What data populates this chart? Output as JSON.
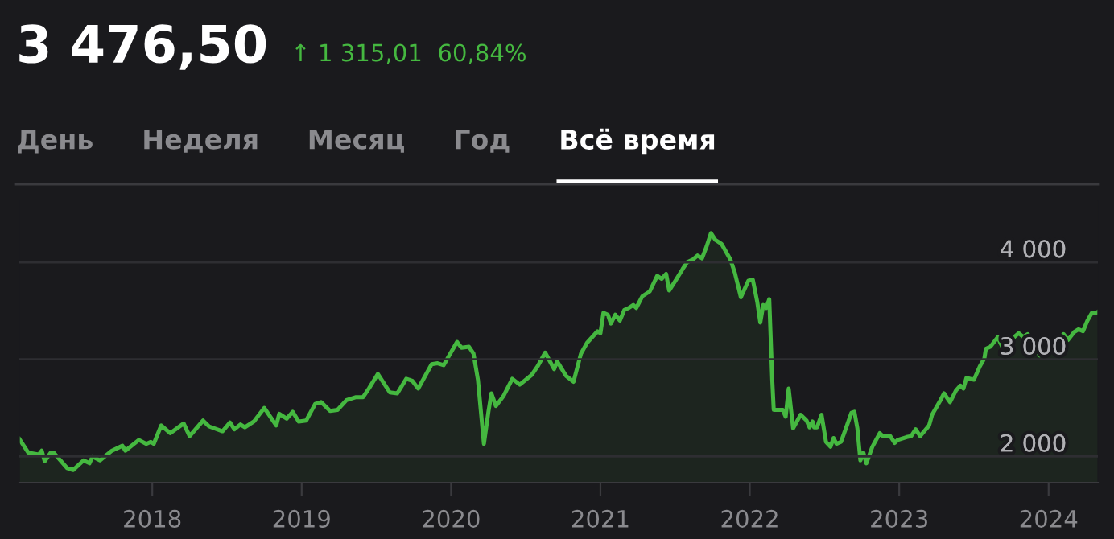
{
  "chart_data": {
    "type": "area",
    "title": "3 476,50",
    "subtitle": "↑ 1 315,01  60,84%",
    "annotations": [
      "День",
      "Неделя",
      "Месяц",
      "Год",
      "Всё время"
    ],
    "series": [
      {
        "color": "#45b840",
        "x": [
          2017.11,
          2017.17,
          2017.24,
          2017.26,
          2017.28,
          2017.32,
          2017.34,
          2017.43,
          2017.47,
          2017.54,
          2017.58,
          2017.6,
          2017.65,
          2017.73,
          2017.8,
          2017.82,
          2017.91,
          2017.96,
          2017.99,
          2018.01,
          2018.06,
          2018.12,
          2018.21,
          2018.25,
          2018.34,
          2018.38,
          2018.47,
          2018.52,
          2018.55,
          2018.59,
          2018.62,
          2018.68,
          2018.75,
          2018.83,
          2018.85,
          2018.9,
          2018.94,
          2018.98,
          2019.03,
          2019.09,
          2019.13,
          2019.19,
          2019.24,
          2019.3,
          2019.36,
          2019.41,
          2019.45,
          2019.51,
          2019.59,
          2019.64,
          2019.7,
          2019.74,
          2019.78,
          2019.87,
          2019.91,
          2019.95,
          2020.04,
          2020.07,
          2020.12,
          2020.15,
          2020.18,
          2020.22,
          2020.25,
          2020.27,
          2020.3,
          2020.35,
          2020.41,
          2020.46,
          2020.54,
          2020.58,
          2020.63,
          2020.69,
          2020.71,
          2020.77,
          2020.82,
          2020.87,
          2020.91,
          2020.98,
          2021.0,
          2021.02,
          2021.05,
          2021.07,
          2021.1,
          2021.13,
          2021.16,
          2021.19,
          2021.22,
          2021.24,
          2021.28,
          2021.33,
          2021.38,
          2021.41,
          2021.44,
          2021.46,
          2021.51,
          2021.55,
          2021.58,
          2021.62,
          2021.65,
          2021.68,
          2021.71,
          2021.74,
          2021.77,
          2021.81,
          2021.87,
          2021.9,
          2021.94,
          2021.99,
          2022.02,
          2022.05,
          2022.07,
          2022.09,
          2022.11,
          2022.13,
          2022.15,
          2022.16,
          2022.22,
          2022.24,
          2022.26,
          2022.29,
          2022.34,
          2022.38,
          2022.4,
          2022.42,
          2022.43,
          2022.45,
          2022.48,
          2022.51,
          2022.54,
          2022.56,
          2022.58,
          2022.61,
          2022.65,
          2022.68,
          2022.7,
          2022.72,
          2022.74,
          2022.76,
          2022.78,
          2022.82,
          2022.87,
          2022.89,
          2022.94,
          2022.97,
          2022.99,
          2023.05,
          2023.08,
          2023.11,
          2023.14,
          2023.2,
          2023.22,
          2023.28,
          2023.3,
          2023.34,
          2023.38,
          2023.41,
          2023.43,
          2023.45,
          2023.5,
          2023.54,
          2023.57,
          2023.58,
          2023.61,
          2023.66,
          2023.68,
          2023.71,
          2023.77,
          2023.8,
          2023.83,
          2023.86,
          2023.89,
          2023.91,
          2023.94,
          2023.97,
          2024.01,
          2024.07,
          2024.1,
          2024.13,
          2024.17,
          2024.2,
          2024.23,
          2024.26,
          2024.29,
          2024.32,
          2024.33
        ],
        "values": [
          2180,
          2040,
          2020,
          2060,
          1950,
          2040,
          2040,
          1880,
          1860,
          1960,
          1930,
          2000,
          1960,
          2060,
          2110,
          2060,
          2170,
          2130,
          2150,
          2130,
          2320,
          2240,
          2340,
          2210,
          2370,
          2310,
          2260,
          2350,
          2280,
          2330,
          2300,
          2360,
          2500,
          2320,
          2440,
          2390,
          2460,
          2360,
          2370,
          2540,
          2560,
          2470,
          2480,
          2580,
          2610,
          2610,
          2700,
          2850,
          2660,
          2650,
          2800,
          2780,
          2700,
          2950,
          2960,
          2940,
          3180,
          3120,
          3130,
          3060,
          2790,
          2130,
          2460,
          2650,
          2520,
          2620,
          2800,
          2740,
          2840,
          2930,
          3070,
          2900,
          2980,
          2830,
          2770,
          3060,
          3170,
          3290,
          3270,
          3480,
          3460,
          3370,
          3460,
          3400,
          3510,
          3530,
          3560,
          3530,
          3650,
          3700,
          3860,
          3830,
          3880,
          3710,
          3830,
          3930,
          4000,
          4030,
          4070,
          4040,
          4160,
          4300,
          4230,
          4190,
          4030,
          3890,
          3640,
          3810,
          3820,
          3590,
          3380,
          3560,
          3530,
          3620,
          2790,
          2480,
          2480,
          2410,
          2700,
          2290,
          2430,
          2370,
          2300,
          2360,
          2300,
          2300,
          2430,
          2150,
          2100,
          2190,
          2130,
          2150,
          2320,
          2450,
          2460,
          2290,
          1960,
          2040,
          1930,
          2100,
          2240,
          2210,
          2210,
          2140,
          2170,
          2200,
          2210,
          2280,
          2210,
          2320,
          2430,
          2590,
          2650,
          2560,
          2680,
          2730,
          2700,
          2810,
          2790,
          2930,
          3010,
          3110,
          3130,
          3230,
          3160,
          3070,
          3230,
          3270,
          3230,
          3260,
          3200,
          3130,
          3040,
          3090,
          3150,
          3200,
          3260,
          3200,
          3280,
          3310,
          3290,
          3400,
          3480,
          3480,
          3490
        ]
      }
    ],
    "xlim": [
      2017.11,
      2024.33
    ],
    "xticks": [
      2018,
      2019,
      2020,
      2021,
      2022,
      2023,
      2024
    ],
    "ylim": [
      1730,
      4630
    ],
    "yticks": [
      {
        "value": 2000,
        "label": "2 000"
      },
      {
        "value": 3000,
        "label": "3 000"
      },
      {
        "value": 4000,
        "label": "4 000"
      }
    ],
    "grid": "y"
  }
}
